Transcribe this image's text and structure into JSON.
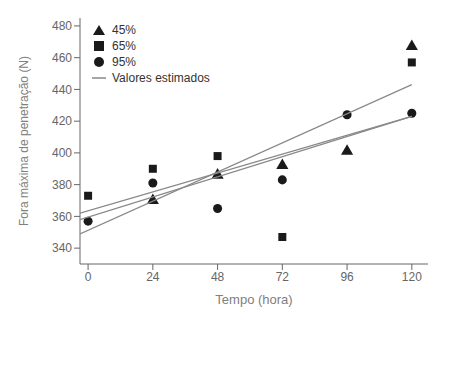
{
  "chart_data": {
    "type": "scatter",
    "xlabel": "Tempo (hora)",
    "ylabel": "Fora máxima de penetração (N)",
    "xlim": [
      -3,
      126
    ],
    "ylim": [
      330,
      485
    ],
    "xticks": [
      0,
      24,
      48,
      72,
      96,
      120
    ],
    "yticks": [
      340,
      360,
      380,
      400,
      420,
      440,
      460,
      480
    ],
    "grid": false,
    "legend": "upper left",
    "series": [
      {
        "name": "45%",
        "type": "scatter",
        "marker": "triangle",
        "color": "#1a1a1a",
        "x": [
          24,
          48,
          72,
          96,
          120
        ],
        "values": [
          370,
          386,
          392,
          401,
          467
        ]
      },
      {
        "name": "65%",
        "type": "scatter",
        "marker": "square",
        "color": "#1a1a1a",
        "x": [
          0,
          24,
          48,
          72,
          120
        ],
        "values": [
          373,
          390,
          398,
          347,
          457
        ]
      },
      {
        "name": "95%",
        "type": "scatter",
        "marker": "circle",
        "color": "#1a1a1a",
        "x": [
          0,
          24,
          48,
          72,
          96,
          120
        ],
        "values": [
          357,
          381,
          365,
          383,
          424,
          425
        ]
      },
      {
        "name": "Valores estimados",
        "type": "line",
        "color": "#888888",
        "segments": [
          {
            "x": [
              -3,
              120
            ],
            "values": [
              358.0,
              423.0
            ]
          },
          {
            "x": [
              -3,
              120
            ],
            "values": [
              349.0,
              443.0
            ]
          },
          {
            "x": [
              -3,
              120
            ],
            "values": [
              362.0,
              423.0
            ]
          }
        ]
      }
    ]
  }
}
